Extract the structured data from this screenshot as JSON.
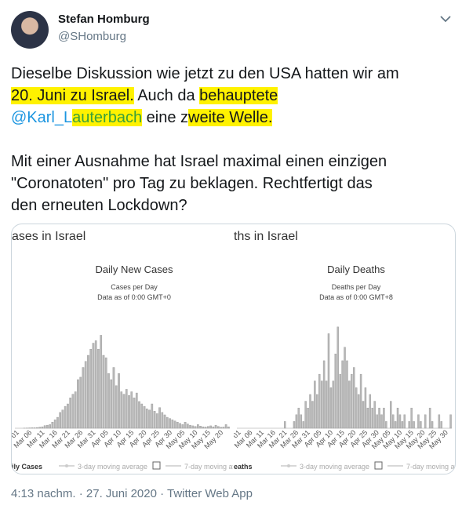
{
  "tweet": {
    "name": "Stefan Homburg",
    "handle": "@SHomburg",
    "lines": [
      [
        {
          "text": "Dieselbe Diskussion wie jetzt zu den USA hatten wir am"
        }
      ],
      [
        {
          "text": "20. Juni zu Israel.",
          "highlight": true
        },
        {
          "text": " Auch da "
        },
        {
          "text": "behauptete",
          "highlight": true
        }
      ],
      [
        {
          "text": "@Karl_L",
          "mention": true
        },
        {
          "text": "auterbach",
          "mention": true,
          "highlight": true
        },
        {
          "text": " eine z"
        },
        {
          "text": "weite Welle.",
          "highlight": true
        }
      ],
      [],
      [
        {
          "text": "Mit einer Ausnahme hat Israel maximal einen einzigen"
        }
      ],
      [
        {
          "text": "\"Coronatoten\" pro Tag zu beklagen. Rechtfertigt das"
        }
      ],
      [
        {
          "text": "den erneuten Lockdown?"
        }
      ]
    ],
    "footer": "4:13 nachm. · 27. Juni 2020 · Twitter Web App"
  },
  "chart_data": [
    {
      "type": "bar",
      "heading": "ases in Israel",
      "title": "Daily New Cases",
      "subtitle": "Cases per Day",
      "note": "Data as of 0:00 GMT+0",
      "color": "#b8b8b8",
      "categories": [
        "ar 01",
        null,
        null,
        null,
        null,
        "Mar 06",
        null,
        null,
        null,
        null,
        "Mar 11",
        null,
        null,
        null,
        null,
        "Mar 16",
        null,
        null,
        null,
        null,
        "Mar 21",
        null,
        null,
        null,
        null,
        "Mar 26",
        null,
        null,
        null,
        null,
        "Mar 31",
        null,
        null,
        null,
        null,
        "Apr 05",
        null,
        null,
        null,
        null,
        "Apr 10",
        null,
        null,
        null,
        null,
        "Apr 15",
        null,
        null,
        null,
        null,
        "Apr 20",
        null,
        null,
        null,
        null,
        "Apr 25",
        null,
        null,
        null,
        null,
        "Apr 30",
        null,
        null,
        null,
        null,
        "May 05",
        null,
        null,
        null,
        null,
        "May 10",
        null,
        null,
        null,
        null,
        "May 15",
        null,
        null,
        null,
        null,
        "May 20",
        null,
        null
      ],
      "values": [
        0,
        0,
        1,
        2,
        3,
        4,
        4,
        6,
        9,
        12,
        22,
        25,
        30,
        50,
        70,
        90,
        130,
        150,
        180,
        200,
        250,
        280,
        300,
        400,
        420,
        500,
        550,
        600,
        650,
        700,
        720,
        650,
        765,
        600,
        580,
        450,
        400,
        500,
        350,
        450,
        300,
        280,
        320,
        270,
        300,
        250,
        290,
        220,
        200,
        180,
        160,
        150,
        200,
        140,
        120,
        170,
        130,
        110,
        90,
        80,
        70,
        60,
        50,
        40,
        30,
        50,
        35,
        25,
        20,
        15,
        30,
        18,
        12,
        10,
        15,
        20,
        12,
        25,
        15,
        8,
        10,
        30,
        12
      ],
      "ylim": [
        0,
        1000
      ],
      "legend": [
        "ily Cases",
        "3-day moving average",
        "7-day moving avera"
      ]
    },
    {
      "type": "bar",
      "heading": "ths in Israel",
      "title": "Daily Deaths",
      "subtitle": "Deaths per Day",
      "note": "Data as of 0:00 GMT+8",
      "color": "#b8b8b8",
      "categories": [
        "Mar 01",
        null,
        null,
        null,
        null,
        "Mar 06",
        null,
        null,
        null,
        null,
        "Mar 11",
        null,
        null,
        null,
        null,
        "Mar 16",
        null,
        null,
        null,
        null,
        "Mar 21",
        null,
        null,
        null,
        null,
        "Mar 26",
        null,
        null,
        null,
        null,
        "Mar 31",
        null,
        null,
        null,
        null,
        "Apr 05",
        null,
        null,
        null,
        null,
        "Apr 10",
        null,
        null,
        null,
        null,
        "Apr 15",
        null,
        null,
        null,
        null,
        "Apr 20",
        null,
        null,
        null,
        null,
        "Apr 25",
        null,
        null,
        null,
        null,
        "Apr 30",
        null,
        null,
        null,
        null,
        "May 05",
        null,
        null,
        null,
        null,
        "May 10",
        null,
        null,
        null,
        null,
        "May 15",
        null,
        null,
        null,
        null,
        "May 20",
        null,
        null,
        null,
        null,
        "May 25",
        null,
        null,
        null,
        null,
        "May 30",
        null
      ],
      "values": [
        0,
        0,
        0,
        0,
        0,
        0,
        0,
        0,
        0,
        0,
        0,
        0,
        0,
        0,
        0,
        0,
        0,
        0,
        0,
        1,
        0,
        0,
        0,
        1,
        2,
        3,
        2,
        1,
        4,
        3,
        5,
        4,
        7,
        5,
        8,
        7,
        10,
        7,
        14,
        6,
        7,
        11,
        15,
        8,
        10,
        12,
        10,
        7,
        8,
        9,
        6,
        5,
        8,
        4,
        6,
        3,
        5,
        3,
        4,
        2,
        3,
        2,
        3,
        1,
        0,
        4,
        2,
        1,
        3,
        2,
        1,
        2,
        0,
        1,
        3,
        1,
        0,
        2,
        1,
        0,
        2,
        0,
        3,
        1,
        0,
        0,
        2,
        1,
        0,
        0,
        0,
        2
      ],
      "ylim": [
        0,
        18
      ],
      "legend": [
        "eaths",
        "3-day moving average",
        "7-day moving average"
      ]
    }
  ]
}
